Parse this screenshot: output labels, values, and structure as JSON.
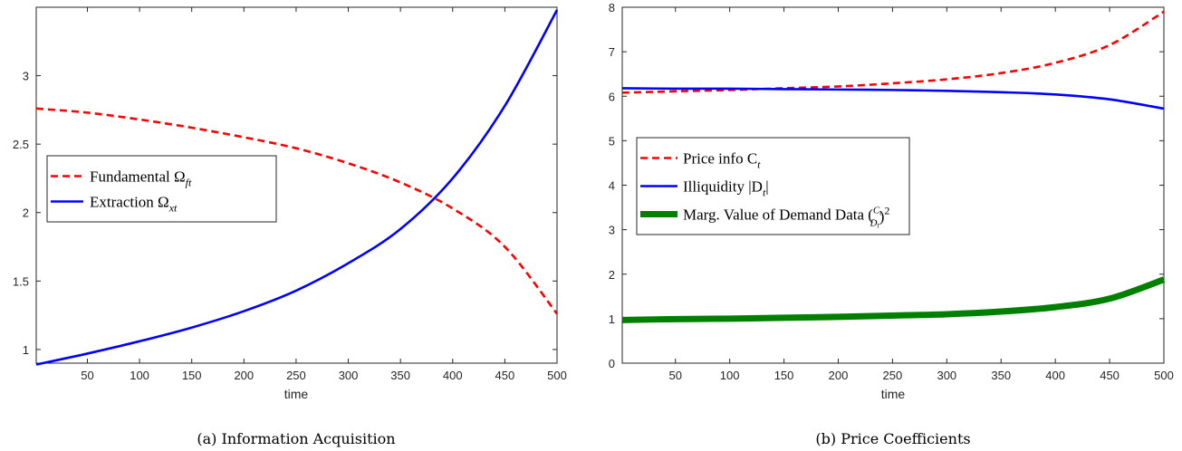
{
  "chart_data": [
    {
      "type": "line",
      "caption": "(a) Information Acquisition",
      "xlabel": "time",
      "ylabel": "",
      "xlim": [
        1,
        500
      ],
      "ylim": [
        0.9,
        3.5
      ],
      "xticks": [
        "50",
        "100",
        "150",
        "200",
        "250",
        "300",
        "350",
        "400",
        "450",
        "500"
      ],
      "yticks": [
        "1",
        "1.5",
        "2",
        "2.5",
        "3"
      ],
      "grid": false,
      "legend_position": "middle-left",
      "series": [
        {
          "name": "Fundamental Ω_ft",
          "name_main": "Fundamental Ω",
          "name_sub": "ft",
          "color": "#ff0000",
          "style": "dashed",
          "x": [
            1,
            50,
            100,
            150,
            200,
            250,
            300,
            350,
            400,
            450,
            500
          ],
          "values": [
            2.76,
            2.73,
            2.68,
            2.62,
            2.55,
            2.47,
            2.36,
            2.22,
            2.03,
            1.75,
            1.26
          ]
        },
        {
          "name": "Extraction Ω_xt",
          "name_main": "Extraction Ω",
          "name_sub": "xt",
          "color": "#0000ff",
          "style": "solid",
          "x": [
            1,
            50,
            100,
            150,
            200,
            250,
            300,
            350,
            400,
            450,
            500
          ],
          "values": [
            0.89,
            0.97,
            1.06,
            1.16,
            1.28,
            1.43,
            1.63,
            1.88,
            2.25,
            2.78,
            3.48
          ]
        }
      ]
    },
    {
      "type": "line",
      "caption": "(b) Price Coefficients",
      "xlabel": "time",
      "ylabel": "",
      "xlim": [
        1,
        500
      ],
      "ylim": [
        0,
        8
      ],
      "xticks": [
        "50",
        "100",
        "150",
        "200",
        "250",
        "300",
        "350",
        "400",
        "450",
        "500"
      ],
      "yticks": [
        "0",
        "1",
        "2",
        "3",
        "4",
        "5",
        "6",
        "7",
        "8"
      ],
      "grid": false,
      "legend_position": "middle-left",
      "series": [
        {
          "name": "Price info C_t",
          "name_main": "Price info C",
          "name_sub": "t",
          "color": "#ff0000",
          "style": "dashed",
          "x": [
            1,
            50,
            100,
            150,
            200,
            250,
            300,
            350,
            400,
            450,
            500
          ],
          "values": [
            6.08,
            6.11,
            6.14,
            6.18,
            6.22,
            6.29,
            6.38,
            6.52,
            6.75,
            7.15,
            7.9
          ]
        },
        {
          "name": "Illiquidity |D_t|",
          "name_main": "Illiquidity |D",
          "name_sub": "t",
          "name_after": "|",
          "color": "#0000ff",
          "style": "solid",
          "x": [
            1,
            50,
            100,
            150,
            200,
            250,
            300,
            350,
            400,
            450,
            500
          ],
          "values": [
            6.18,
            6.17,
            6.17,
            6.16,
            6.15,
            6.14,
            6.12,
            6.09,
            6.04,
            5.93,
            5.72
          ]
        },
        {
          "name": "Marg. Value of Demand Data (C_t/D_t)^2",
          "name_main": "Marg. Value of Demand Data (",
          "frac_num": "C",
          "frac_den": "D",
          "frac_sub": "t",
          "name_after": ")",
          "name_sup": "2",
          "color": "#007f00",
          "style": "thick",
          "x": [
            1,
            50,
            100,
            150,
            200,
            250,
            300,
            350,
            400,
            450,
            500
          ],
          "values": [
            0.97,
            0.99,
            1.0,
            1.02,
            1.04,
            1.07,
            1.1,
            1.16,
            1.26,
            1.45,
            1.88
          ]
        }
      ]
    }
  ]
}
